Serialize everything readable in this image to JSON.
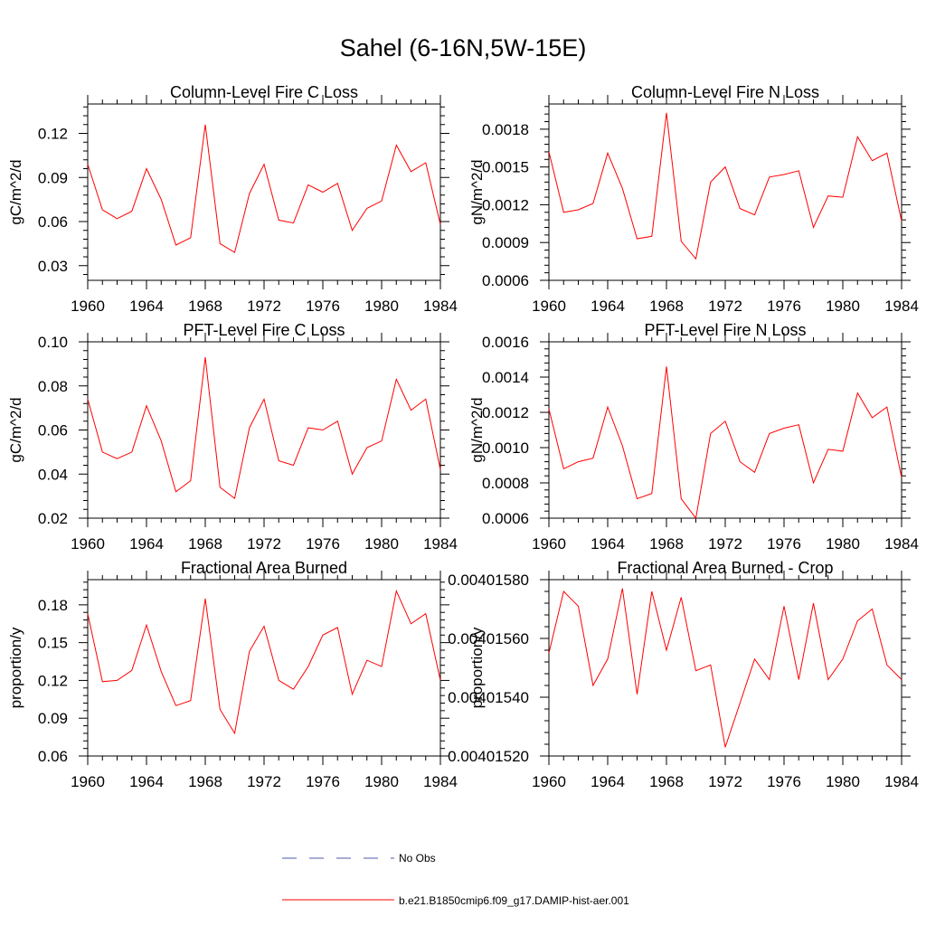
{
  "page": {
    "title": "Sahel (6-16N,5W-15E)"
  },
  "legend": [
    {
      "label": "No Obs",
      "color": "#4b5aa8",
      "dash": "dashed"
    },
    {
      "label": "b.e21.B1850cmip6.f09_g17.DAMIP-hist-aer.001",
      "color": "#ff0000",
      "dash": "solid"
    }
  ],
  "chart_data": [
    {
      "type": "line",
      "title": "Column-Level Fire C Loss",
      "ylabel": "gC/m^2/d",
      "xlim": [
        1960,
        1984
      ],
      "ylim": [
        0.02,
        0.14
      ],
      "xticks": [
        1960,
        1964,
        1968,
        1972,
        1976,
        1980,
        1984
      ],
      "yticks": [
        0.03,
        0.06,
        0.09,
        0.12
      ],
      "ytick_labels": [
        "0.03",
        "0.06",
        "0.09",
        "0.12"
      ],
      "x": [
        1960,
        1961,
        1962,
        1963,
        1964,
        1965,
        1966,
        1967,
        1968,
        1969,
        1970,
        1971,
        1972,
        1973,
        1974,
        1975,
        1976,
        1977,
        1978,
        1979,
        1980,
        1981,
        1982,
        1983,
        1984
      ],
      "series": [
        {
          "name": "b.e21.B1850cmip6.f09_g17.DAMIP-hist-aer.001",
          "color": "#ff0000",
          "values": [
            0.099,
            0.068,
            0.062,
            0.067,
            0.096,
            0.075,
            0.044,
            0.049,
            0.126,
            0.045,
            0.039,
            0.079,
            0.099,
            0.061,
            0.059,
            0.085,
            0.08,
            0.086,
            0.054,
            0.069,
            0.074,
            0.112,
            0.094,
            0.1,
            0.058
          ]
        }
      ]
    },
    {
      "type": "line",
      "title": "Column-Level Fire N Loss",
      "ylabel": "gN/m^2/d",
      "xlim": [
        1960,
        1984
      ],
      "ylim": [
        0.0006,
        0.002
      ],
      "xticks": [
        1960,
        1964,
        1968,
        1972,
        1976,
        1980,
        1984
      ],
      "yticks": [
        0.0006,
        0.0009,
        0.0012,
        0.0015,
        0.0018
      ],
      "ytick_labels": [
        "0.0006",
        "0.0009",
        "0.0012",
        "0.0015",
        "0.0018"
      ],
      "x": [
        1960,
        1961,
        1962,
        1963,
        1964,
        1965,
        1966,
        1967,
        1968,
        1969,
        1970,
        1971,
        1972,
        1973,
        1974,
        1975,
        1976,
        1977,
        1978,
        1979,
        1980,
        1981,
        1982,
        1983,
        1984
      ],
      "series": [
        {
          "name": "b.e21.B1850cmip6.f09_g17.DAMIP-hist-aer.001",
          "color": "#ff0000",
          "values": [
            0.00162,
            0.00114,
            0.00116,
            0.00121,
            0.00161,
            0.00133,
            0.00093,
            0.00095,
            0.00193,
            0.00091,
            0.00077,
            0.00138,
            0.0015,
            0.00117,
            0.00112,
            0.00142,
            0.00144,
            0.00147,
            0.00102,
            0.00127,
            0.00126,
            0.00174,
            0.00155,
            0.00161,
            0.00107
          ]
        }
      ]
    },
    {
      "type": "line",
      "title": "PFT-Level Fire C Loss",
      "ylabel": "gC/m^2/d",
      "xlim": [
        1960,
        1984
      ],
      "ylim": [
        0.02,
        0.1
      ],
      "xticks": [
        1960,
        1964,
        1968,
        1972,
        1976,
        1980,
        1984
      ],
      "yticks": [
        0.02,
        0.04,
        0.06,
        0.08,
        0.1
      ],
      "ytick_labels": [
        "0.02",
        "0.04",
        "0.06",
        "0.08",
        "0.10"
      ],
      "x": [
        1960,
        1961,
        1962,
        1963,
        1964,
        1965,
        1966,
        1967,
        1968,
        1969,
        1970,
        1971,
        1972,
        1973,
        1974,
        1975,
        1976,
        1977,
        1978,
        1979,
        1980,
        1981,
        1982,
        1983,
        1984
      ],
      "series": [
        {
          "name": "b.e21.B1850cmip6.f09_g17.DAMIP-hist-aer.001",
          "color": "#ff0000",
          "values": [
            0.074,
            0.05,
            0.047,
            0.05,
            0.071,
            0.055,
            0.032,
            0.037,
            0.093,
            0.034,
            0.029,
            0.061,
            0.074,
            0.046,
            0.044,
            0.061,
            0.06,
            0.064,
            0.04,
            0.052,
            0.055,
            0.083,
            0.069,
            0.074,
            0.042
          ]
        }
      ]
    },
    {
      "type": "line",
      "title": "PFT-Level Fire N Loss",
      "ylabel": "gN/m^2/d",
      "xlim": [
        1960,
        1984
      ],
      "ylim": [
        0.0006,
        0.0016
      ],
      "xticks": [
        1960,
        1964,
        1968,
        1972,
        1976,
        1980,
        1984
      ],
      "yticks": [
        0.0006,
        0.0008,
        0.001,
        0.0012,
        0.0014,
        0.0016
      ],
      "ytick_labels": [
        "0.0006",
        "0.0008",
        "0.0010",
        "0.0012",
        "0.0014",
        "0.0016"
      ],
      "x": [
        1960,
        1961,
        1962,
        1963,
        1964,
        1965,
        1966,
        1967,
        1968,
        1969,
        1970,
        1971,
        1972,
        1973,
        1974,
        1975,
        1976,
        1977,
        1978,
        1979,
        1980,
        1981,
        1982,
        1983,
        1984
      ],
      "series": [
        {
          "name": "b.e21.B1850cmip6.f09_g17.DAMIP-hist-aer.001",
          "color": "#ff0000",
          "values": [
            0.00122,
            0.00088,
            0.00092,
            0.00094,
            0.00123,
            0.00101,
            0.00071,
            0.00074,
            0.00146,
            0.00071,
            0.0006,
            0.00108,
            0.00115,
            0.00092,
            0.00086,
            0.00108,
            0.00111,
            0.00113,
            0.0008,
            0.00099,
            0.00098,
            0.00131,
            0.00117,
            0.00123,
            0.00083
          ]
        }
      ]
    },
    {
      "type": "line",
      "title": "Fractional Area Burned",
      "ylabel": "proportion/y",
      "xlim": [
        1960,
        1984
      ],
      "ylim": [
        0.06,
        0.2
      ],
      "xticks": [
        1960,
        1964,
        1968,
        1972,
        1976,
        1980,
        1984
      ],
      "yticks": [
        0.06,
        0.09,
        0.12,
        0.15,
        0.18
      ],
      "ytick_labels": [
        "0.06",
        "0.09",
        "0.12",
        "0.15",
        "0.18"
      ],
      "x": [
        1960,
        1961,
        1962,
        1963,
        1964,
        1965,
        1966,
        1967,
        1968,
        1969,
        1970,
        1971,
        1972,
        1973,
        1974,
        1975,
        1976,
        1977,
        1978,
        1979,
        1980,
        1981,
        1982,
        1983,
        1984
      ],
      "series": [
        {
          "name": "b.e21.B1850cmip6.f09_g17.DAMIP-hist-aer.001",
          "color": "#ff0000",
          "values": [
            0.173,
            0.119,
            0.12,
            0.128,
            0.164,
            0.127,
            0.1,
            0.104,
            0.185,
            0.097,
            0.078,
            0.143,
            0.163,
            0.12,
            0.113,
            0.131,
            0.156,
            0.162,
            0.109,
            0.136,
            0.131,
            0.191,
            0.165,
            0.173,
            0.12
          ]
        }
      ]
    },
    {
      "type": "line",
      "title": "Fractional Area Burned - Crop",
      "ylabel": "proportion/y",
      "xlim": [
        1960,
        1984
      ],
      "ylim": [
        0.0040152,
        0.0040158
      ],
      "xticks": [
        1960,
        1964,
        1968,
        1972,
        1976,
        1980,
        1984
      ],
      "yticks": [
        0.0040152,
        0.0040154,
        0.0040156,
        0.0040158
      ],
      "ytick_labels": [
        "0.00401520",
        "0.00401540",
        "0.00401560",
        "0.00401580"
      ],
      "x": [
        1960,
        1961,
        1962,
        1963,
        1964,
        1965,
        1966,
        1967,
        1968,
        1969,
        1970,
        1971,
        1972,
        1973,
        1974,
        1975,
        1976,
        1977,
        1978,
        1979,
        1980,
        1981,
        1982,
        1983,
        1984
      ],
      "series": [
        {
          "name": "b.e21.B1850cmip6.f09_g17.DAMIP-hist-aer.001",
          "color": "#ff0000",
          "values": [
            0.00401555,
            0.00401576,
            0.00401571,
            0.00401544,
            0.00401553,
            0.00401577,
            0.00401541,
            0.00401576,
            0.00401556,
            0.00401574,
            0.00401549,
            0.00401551,
            0.00401523,
            0.00401538,
            0.00401553,
            0.00401546,
            0.00401571,
            0.00401546,
            0.00401572,
            0.00401546,
            0.00401553,
            0.00401566,
            0.0040157,
            0.00401551,
            0.00401546
          ]
        }
      ]
    }
  ]
}
